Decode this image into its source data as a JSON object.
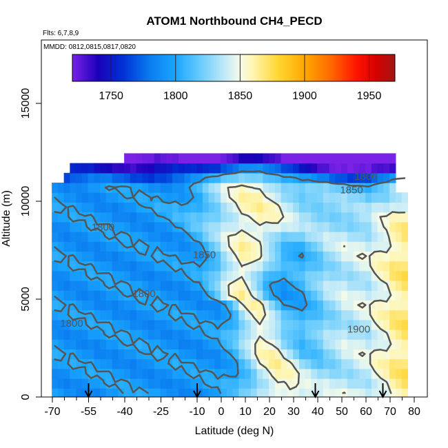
{
  "chart_data": {
    "type": "heatmap",
    "title": "ATOM1 Northbound CH4_PECD",
    "flights_note": "Flts: 6,7,8,9",
    "dates_note": "MMDD: 0812,0815,0817,0820",
    "xlabel": "Latitude (deg N)",
    "ylabel": "Altitude (m)",
    "xlim": [
      -70,
      80
    ],
    "ylim": [
      0,
      17500
    ],
    "x_ticks": [
      -70,
      -55,
      -40,
      -25,
      -10,
      0,
      10,
      20,
      30,
      40,
      50,
      60,
      70,
      80
    ],
    "x_tick_labels": [
      "-70",
      "-55",
      "-40",
      "-25",
      "-10",
      "0",
      "10",
      "20",
      "30",
      "40",
      "50",
      "60",
      "70",
      "80"
    ],
    "y_ticks": [
      0,
      5000,
      10000,
      15000
    ],
    "y_tick_labels": [
      "0",
      "5000",
      "10000",
      "15000"
    ],
    "colorbar": {
      "range": [
        1720,
        1970
      ],
      "ticks": [
        1750,
        1800,
        1850,
        1900,
        1950
      ],
      "tick_labels": [
        "1750",
        "1800",
        "1850",
        "1900",
        "1950"
      ],
      "stops": [
        {
          "value": 1720,
          "color": "#7a22e6"
        },
        {
          "value": 1740,
          "color": "#1a00b8"
        },
        {
          "value": 1760,
          "color": "#0033d6"
        },
        {
          "value": 1780,
          "color": "#0a7cf0"
        },
        {
          "value": 1800,
          "color": "#1aa6ff"
        },
        {
          "value": 1820,
          "color": "#6ccdfc"
        },
        {
          "value": 1840,
          "color": "#c9ecf7"
        },
        {
          "value": 1850,
          "color": "#f5fbe8"
        },
        {
          "value": 1860,
          "color": "#fff5b0"
        },
        {
          "value": 1880,
          "color": "#ffd530"
        },
        {
          "value": 1900,
          "color": "#ffa800"
        },
        {
          "value": 1920,
          "color": "#ff6a00"
        },
        {
          "value": 1940,
          "color": "#ff1500"
        },
        {
          "value": 1955,
          "color": "#d80000"
        },
        {
          "value": 1970,
          "color": "#a31515"
        }
      ]
    },
    "contour_levels": [
      1800,
      1850,
      1900
    ],
    "contour_labels": [
      {
        "text": "1800",
        "lat": 60,
        "alt": 11100
      },
      {
        "text": "1850",
        "lat": 54,
        "alt": 10400
      },
      {
        "text": "1800",
        "lat": -49,
        "alt": 8500
      },
      {
        "text": "1850",
        "lat": -7,
        "alt": 7100
      },
      {
        "text": "1800",
        "lat": -32,
        "alt": 5100
      },
      {
        "text": "1800",
        "lat": -62,
        "alt": 3600
      },
      {
        "text": "1900",
        "lat": 57,
        "alt": 3300
      }
    ],
    "flight_markers_lat": [
      -55,
      -10,
      39,
      67
    ],
    "grid": false,
    "legend": "colorbar top"
  }
}
